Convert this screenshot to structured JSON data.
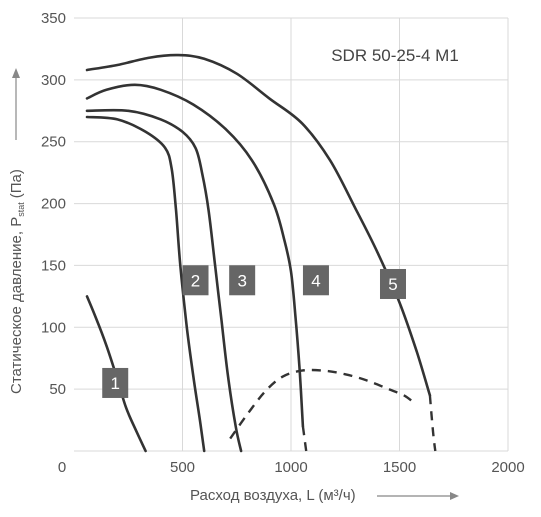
{
  "chart_data": {
    "type": "line",
    "title": "SDR 50-25-4 M1",
    "xlabel": "Расход воздуха, L (м³/ч)",
    "ylabel": "Статическое давление, P",
    "ylabel_sub": "stat",
    "ylabel_unit": "(Па)",
    "xlim": [
      0,
      2000
    ],
    "ylim": [
      0,
      350
    ],
    "x_ticks": [
      0,
      500,
      1000,
      1500,
      2000
    ],
    "y_ticks": [
      50,
      100,
      150,
      200,
      250,
      300,
      350
    ],
    "grid": true,
    "colors": {
      "curve": "#333333",
      "grid": "#d9d9d9",
      "label_bg": "#666666",
      "text": "#555555"
    },
    "series": [
      {
        "name": "1",
        "label_at": [
          190,
          55
        ],
        "points": [
          [
            60,
            125
          ],
          [
            100,
            108
          ],
          [
            150,
            85
          ],
          [
            200,
            58
          ],
          [
            240,
            35
          ],
          [
            290,
            15
          ],
          [
            330,
            0
          ]
        ]
      },
      {
        "name": "2",
        "label_at": [
          560,
          138
        ],
        "points": [
          [
            60,
            270
          ],
          [
            200,
            268
          ],
          [
            330,
            258
          ],
          [
            420,
            245
          ],
          [
            450,
            228
          ],
          [
            470,
            195
          ],
          [
            490,
            150
          ],
          [
            520,
            100
          ],
          [
            550,
            60
          ],
          [
            580,
            25
          ],
          [
            600,
            0
          ]
        ]
      },
      {
        "name": "3",
        "label_at": [
          775,
          138
        ],
        "points": [
          [
            60,
            275
          ],
          [
            250,
            275
          ],
          [
            400,
            268
          ],
          [
            500,
            258
          ],
          [
            560,
            245
          ],
          [
            590,
            225
          ],
          [
            620,
            195
          ],
          [
            650,
            150
          ],
          [
            680,
            105
          ],
          [
            710,
            60
          ],
          [
            745,
            20
          ],
          [
            770,
            0
          ]
        ]
      },
      {
        "name": "4",
        "label_at": [
          1115,
          138
        ],
        "points": [
          [
            60,
            285
          ],
          [
            150,
            292
          ],
          [
            280,
            296
          ],
          [
            400,
            292
          ],
          [
            550,
            280
          ],
          [
            700,
            260
          ],
          [
            820,
            235
          ],
          [
            920,
            200
          ],
          [
            970,
            170
          ],
          [
            1000,
            145
          ],
          [
            1020,
            110
          ],
          [
            1040,
            65
          ],
          [
            1055,
            20
          ]
        ]
      },
      {
        "name": "5",
        "label_at": [
          1470,
          135
        ],
        "points": [
          [
            60,
            308
          ],
          [
            200,
            312
          ],
          [
            350,
            318
          ],
          [
            480,
            320
          ],
          [
            600,
            317
          ],
          [
            750,
            305
          ],
          [
            900,
            285
          ],
          [
            1050,
            265
          ],
          [
            1180,
            235
          ],
          [
            1300,
            195
          ],
          [
            1400,
            160
          ],
          [
            1500,
            120
          ],
          [
            1580,
            80
          ],
          [
            1640,
            45
          ]
        ]
      }
    ],
    "dashed_series": [
      {
        "points": [
          [
            1055,
            20
          ],
          [
            1070,
            0
          ]
        ]
      },
      {
        "points": [
          [
            1640,
            45
          ],
          [
            1655,
            15
          ],
          [
            1665,
            0
          ]
        ]
      },
      {
        "points": [
          [
            720,
            10
          ],
          [
            800,
            30
          ],
          [
            880,
            48
          ],
          [
            960,
            60
          ],
          [
            1050,
            65
          ],
          [
            1150,
            65
          ],
          [
            1250,
            62
          ],
          [
            1350,
            57
          ],
          [
            1450,
            50
          ],
          [
            1520,
            45
          ],
          [
            1560,
            40
          ]
        ]
      }
    ]
  }
}
